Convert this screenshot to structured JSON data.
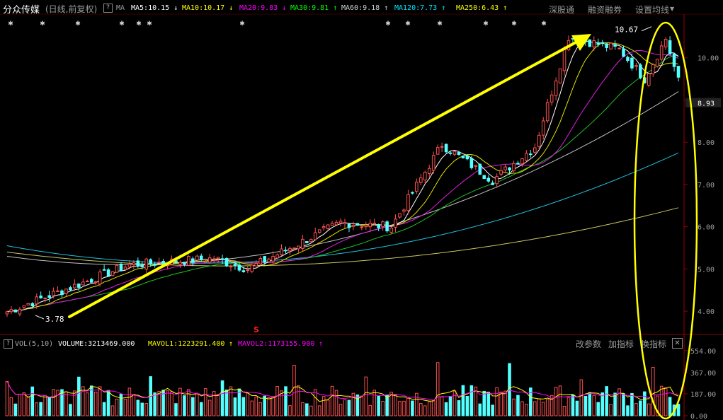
{
  "header": {
    "stock_name": "分众传媒",
    "period": "(日线,前复权)",
    "help": "?",
    "ma_label": "MA",
    "ma_items": [
      {
        "text": "MA5:10.15",
        "arrow": "↓",
        "color": "#ffffff"
      },
      {
        "text": "MA10:10.17",
        "arrow": "↓",
        "color": "#ffff00"
      },
      {
        "text": "MA20:9.83",
        "arrow": "↓",
        "color": "#ff00ff"
      },
      {
        "text": "MA30:9.81",
        "arrow": "↑",
        "color": "#00ff00"
      },
      {
        "text": "MA60:9.18",
        "arrow": "↑",
        "color": "#d0d0d0"
      },
      {
        "text": "MA120:7.73",
        "arrow": "↑",
        "color": "#00e5ff"
      },
      {
        "text": "MA250:6.43",
        "arrow": "↑",
        "color": "#ffff00"
      }
    ],
    "buttons": [
      "深股通",
      "融资融券",
      "设置均线"
    ]
  },
  "volume_header": {
    "help": "?",
    "indicator": "VOL(5,10)",
    "volume": "VOLUME:3213469.000",
    "mavol1": "MAVOL1:1223291.400",
    "mavol1_arrow": "↑",
    "mavol2": "MAVOL2:1173155.900",
    "mavol2_arrow": "↑",
    "buttons": [
      "改参数",
      "加指标",
      "换指标"
    ],
    "close": "✕"
  },
  "annotations": {
    "low_label": "3.78",
    "high_label": "10.67",
    "price_marker": "8.93",
    "signal_mark": "S"
  },
  "colors": {
    "up": "#ff5050",
    "down": "#54ffff",
    "arrow": "#ffff00",
    "ellipse": "#ffff00",
    "axis": "#9a0000"
  },
  "chart_data": [
    {
      "type": "candlestick",
      "title": "分众传媒 (日线,前复权)",
      "ylim": [
        3.5,
        11
      ],
      "y_ticks": [
        "10.00",
        "9.00",
        "8.00",
        "7.00",
        "6.00",
        "5.00",
        "4.00"
      ],
      "x_days": 160,
      "ohlc": [
        {
          "start": 3.95,
          "end": 5.1,
          "days": 30
        },
        {
          "start": 5.1,
          "end": 5.25,
          "days": 20
        },
        {
          "start": 5.25,
          "end": 5.0,
          "days": 8
        },
        {
          "start": 5.0,
          "end": 6.1,
          "days": 22
        },
        {
          "start": 6.1,
          "end": 6.0,
          "days": 12
        },
        {
          "start": 6.0,
          "end": 7.95,
          "days": 12
        },
        {
          "start": 7.95,
          "end": 7.1,
          "days": 12
        },
        {
          "start": 7.1,
          "end": 7.9,
          "days": 10
        },
        {
          "start": 7.9,
          "end": 10.5,
          "days": 8
        },
        {
          "start": 10.5,
          "end": 10.2,
          "days": 12
        },
        {
          "start": 10.2,
          "end": 9.5,
          "days": 6
        },
        {
          "start": 9.5,
          "end": 10.45,
          "days": 5
        },
        {
          "start": 10.45,
          "end": 9.45,
          "days": 3
        }
      ],
      "series": [
        {
          "name": "MA5",
          "value": 10.15
        },
        {
          "name": "MA10",
          "value": 10.17
        },
        {
          "name": "MA20",
          "value": 9.83
        },
        {
          "name": "MA30",
          "value": 9.81
        },
        {
          "name": "MA60",
          "value": 9.18
        },
        {
          "name": "MA120",
          "value": 7.73
        },
        {
          "name": "MA250",
          "value": 6.43
        }
      ],
      "annotations": [
        {
          "text": "3.78",
          "type": "low"
        },
        {
          "text": "10.67",
          "type": "high"
        },
        {
          "type": "trend-arrow",
          "from": [
            0,
            4.1
          ],
          "to": [
            150,
            10.6
          ]
        }
      ]
    },
    {
      "type": "bar",
      "title": "VOL(5,10)",
      "y_ticks": [
        "554.00",
        "367.00",
        "187.00",
        "0.00"
      ],
      "ylim": [
        0,
        554
      ],
      "series": [
        {
          "name": "VOLUME",
          "value": 3213469.0
        },
        {
          "name": "MAVOL1",
          "value": 1223291.4
        },
        {
          "name": "MAVOL2",
          "value": 1173155.9
        }
      ]
    }
  ]
}
